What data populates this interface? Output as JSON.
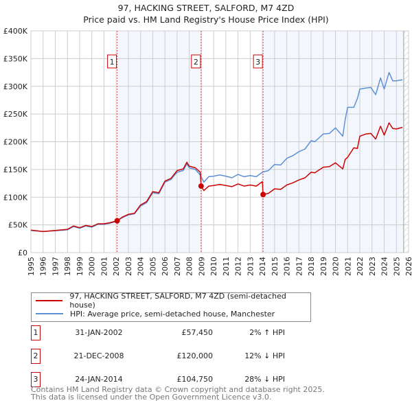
{
  "title": "97, HACKING STREET, SALFORD, M7 4ZD",
  "subtitle": "Price paid vs. HM Land Registry's House Price Index (HPI)",
  "chart_data": {
    "type": "line",
    "xlim": [
      1995,
      2026
    ],
    "ylim": [
      0,
      400000
    ],
    "y_ticks": [
      0,
      50000,
      100000,
      150000,
      200000,
      250000,
      300000,
      350000,
      400000
    ],
    "y_tick_labels": [
      "£0",
      "£50K",
      "£100K",
      "£150K",
      "£200K",
      "£250K",
      "£300K",
      "£350K",
      "£400K"
    ],
    "x_ticks": [
      1995,
      1996,
      1997,
      1998,
      1999,
      2000,
      2001,
      2002,
      2003,
      2004,
      2005,
      2006,
      2007,
      2008,
      2009,
      2010,
      2011,
      2012,
      2013,
      2014,
      2015,
      2016,
      2017,
      2018,
      2019,
      2020,
      2021,
      2022,
      2023,
      2024,
      2025,
      2026
    ],
    "grid": true,
    "shaded_periods": [
      [
        2002.08,
        2008.97
      ],
      [
        2014.06,
        2025.6
      ]
    ],
    "forecast_hatch_from": 2025.6,
    "series": [
      {
        "name": "97, HACKING STREET, SALFORD, M7 4ZD (semi-detached house)",
        "color": "#cc0000",
        "x": [
          1995,
          1996,
          1997,
          1998,
          1998.5,
          1999,
          1999.5,
          2000,
          2000.5,
          2001,
          2001.5,
          2002.08,
          2002.5,
          2003,
          2003.5,
          2004,
          2004.5,
          2005,
          2005.5,
          2006,
          2006.5,
          2007,
          2007.5,
          2007.8,
          2008,
          2008.5,
          2008.9,
          2008.97,
          2009.2,
          2009.6,
          2010,
          2010.5,
          2011,
          2011.5,
          2012,
          2012.5,
          2013,
          2013.5,
          2014.0,
          2014.06,
          2014.5,
          2015,
          2015.5,
          2016,
          2016.5,
          2017,
          2017.5,
          2018,
          2018.3,
          2019,
          2019.5,
          2020,
          2020.6,
          2020.8,
          2021,
          2021.5,
          2021.8,
          2022,
          2022.5,
          2022.9,
          2023.3,
          2023.7,
          2024,
          2024.4,
          2024.7,
          2025,
          2025.5
        ],
        "values": [
          40500,
          38000,
          40000,
          42000,
          48000,
          45000,
          49000,
          47000,
          52000,
          52000,
          54000,
          57450,
          64000,
          69000,
          71000,
          86000,
          92000,
          110000,
          108000,
          129000,
          134000,
          148000,
          151000,
          163000,
          156000,
          153000,
          145000,
          120000,
          112000,
          120000,
          121000,
          123000,
          121000,
          119000,
          124000,
          120000,
          122000,
          120000,
          128000,
          104750,
          107000,
          115000,
          114000,
          122000,
          126000,
          131000,
          135000,
          145000,
          144000,
          154000,
          155000,
          162000,
          151000,
          168000,
          172000,
          189000,
          188000,
          210000,
          214000,
          215000,
          205000,
          228000,
          212000,
          234000,
          224000,
          223000,
          226000
        ]
      },
      {
        "name": "HPI: Average price, semi-detached house, Manchester",
        "color": "#5b8fd6",
        "x": [
          1995,
          1996,
          1997,
          1998,
          1998.5,
          1999,
          1999.5,
          2000,
          2000.5,
          2001,
          2001.5,
          2002,
          2002.5,
          2003,
          2003.5,
          2004,
          2004.5,
          2005,
          2005.5,
          2006,
          2006.5,
          2007,
          2007.5,
          2007.8,
          2008,
          2008.5,
          2008.9,
          2009.2,
          2009.6,
          2010,
          2010.5,
          2011,
          2011.5,
          2012,
          2012.5,
          2013,
          2013.5,
          2014,
          2014.5,
          2015,
          2015.5,
          2016,
          2016.5,
          2017,
          2017.5,
          2018,
          2018.3,
          2019,
          2019.5,
          2020,
          2020.6,
          2020.8,
          2021,
          2021.5,
          2021.8,
          2022,
          2022.5,
          2022.9,
          2023.3,
          2023.7,
          2024,
          2024.4,
          2024.7,
          2025,
          2025.5
        ],
        "values": [
          40000,
          38000,
          39500,
          41000,
          47000,
          44000,
          48000,
          46000,
          51000,
          51000,
          53000,
          56000,
          63000,
          68000,
          70000,
          84000,
          90000,
          108000,
          106000,
          127000,
          132000,
          145000,
          148000,
          160000,
          153000,
          150000,
          140000,
          127000,
          137000,
          138000,
          140000,
          138000,
          135000,
          141000,
          137000,
          139000,
          137000,
          145000,
          148000,
          159000,
          158000,
          170000,
          175000,
          182000,
          187000,
          202000,
          200000,
          214000,
          215000,
          225000,
          210000,
          240000,
          262000,
          262000,
          278000,
          295000,
          297000,
          298000,
          285000,
          315000,
          295000,
          325000,
          310000,
          310000,
          312000
        ]
      }
    ],
    "annotations": [
      {
        "label": "1",
        "x": 2002.08,
        "value": 57450
      },
      {
        "label": "2",
        "x": 2008.97,
        "value": 120000
      },
      {
        "label": "3",
        "x": 2014.06,
        "value": 104750
      }
    ]
  },
  "legend": {
    "property": "97, HACKING STREET, SALFORD, M7 4ZD (semi-detached house)",
    "hpi": "HPI: Average price, semi-detached house, Manchester"
  },
  "transactions": [
    {
      "num": "1",
      "date": "31-JAN-2002",
      "price": "£57,450",
      "hpi": "2% ↑ HPI"
    },
    {
      "num": "2",
      "date": "21-DEC-2008",
      "price": "£120,000",
      "hpi": "12% ↓ HPI"
    },
    {
      "num": "3",
      "date": "24-JAN-2014",
      "price": "£104,750",
      "hpi": "28% ↓ HPI"
    }
  ],
  "footer": {
    "line1": "Contains HM Land Registry data © Crown copyright and database right 2025.",
    "line2": "This data is licensed under the Open Government Licence v3.0."
  }
}
